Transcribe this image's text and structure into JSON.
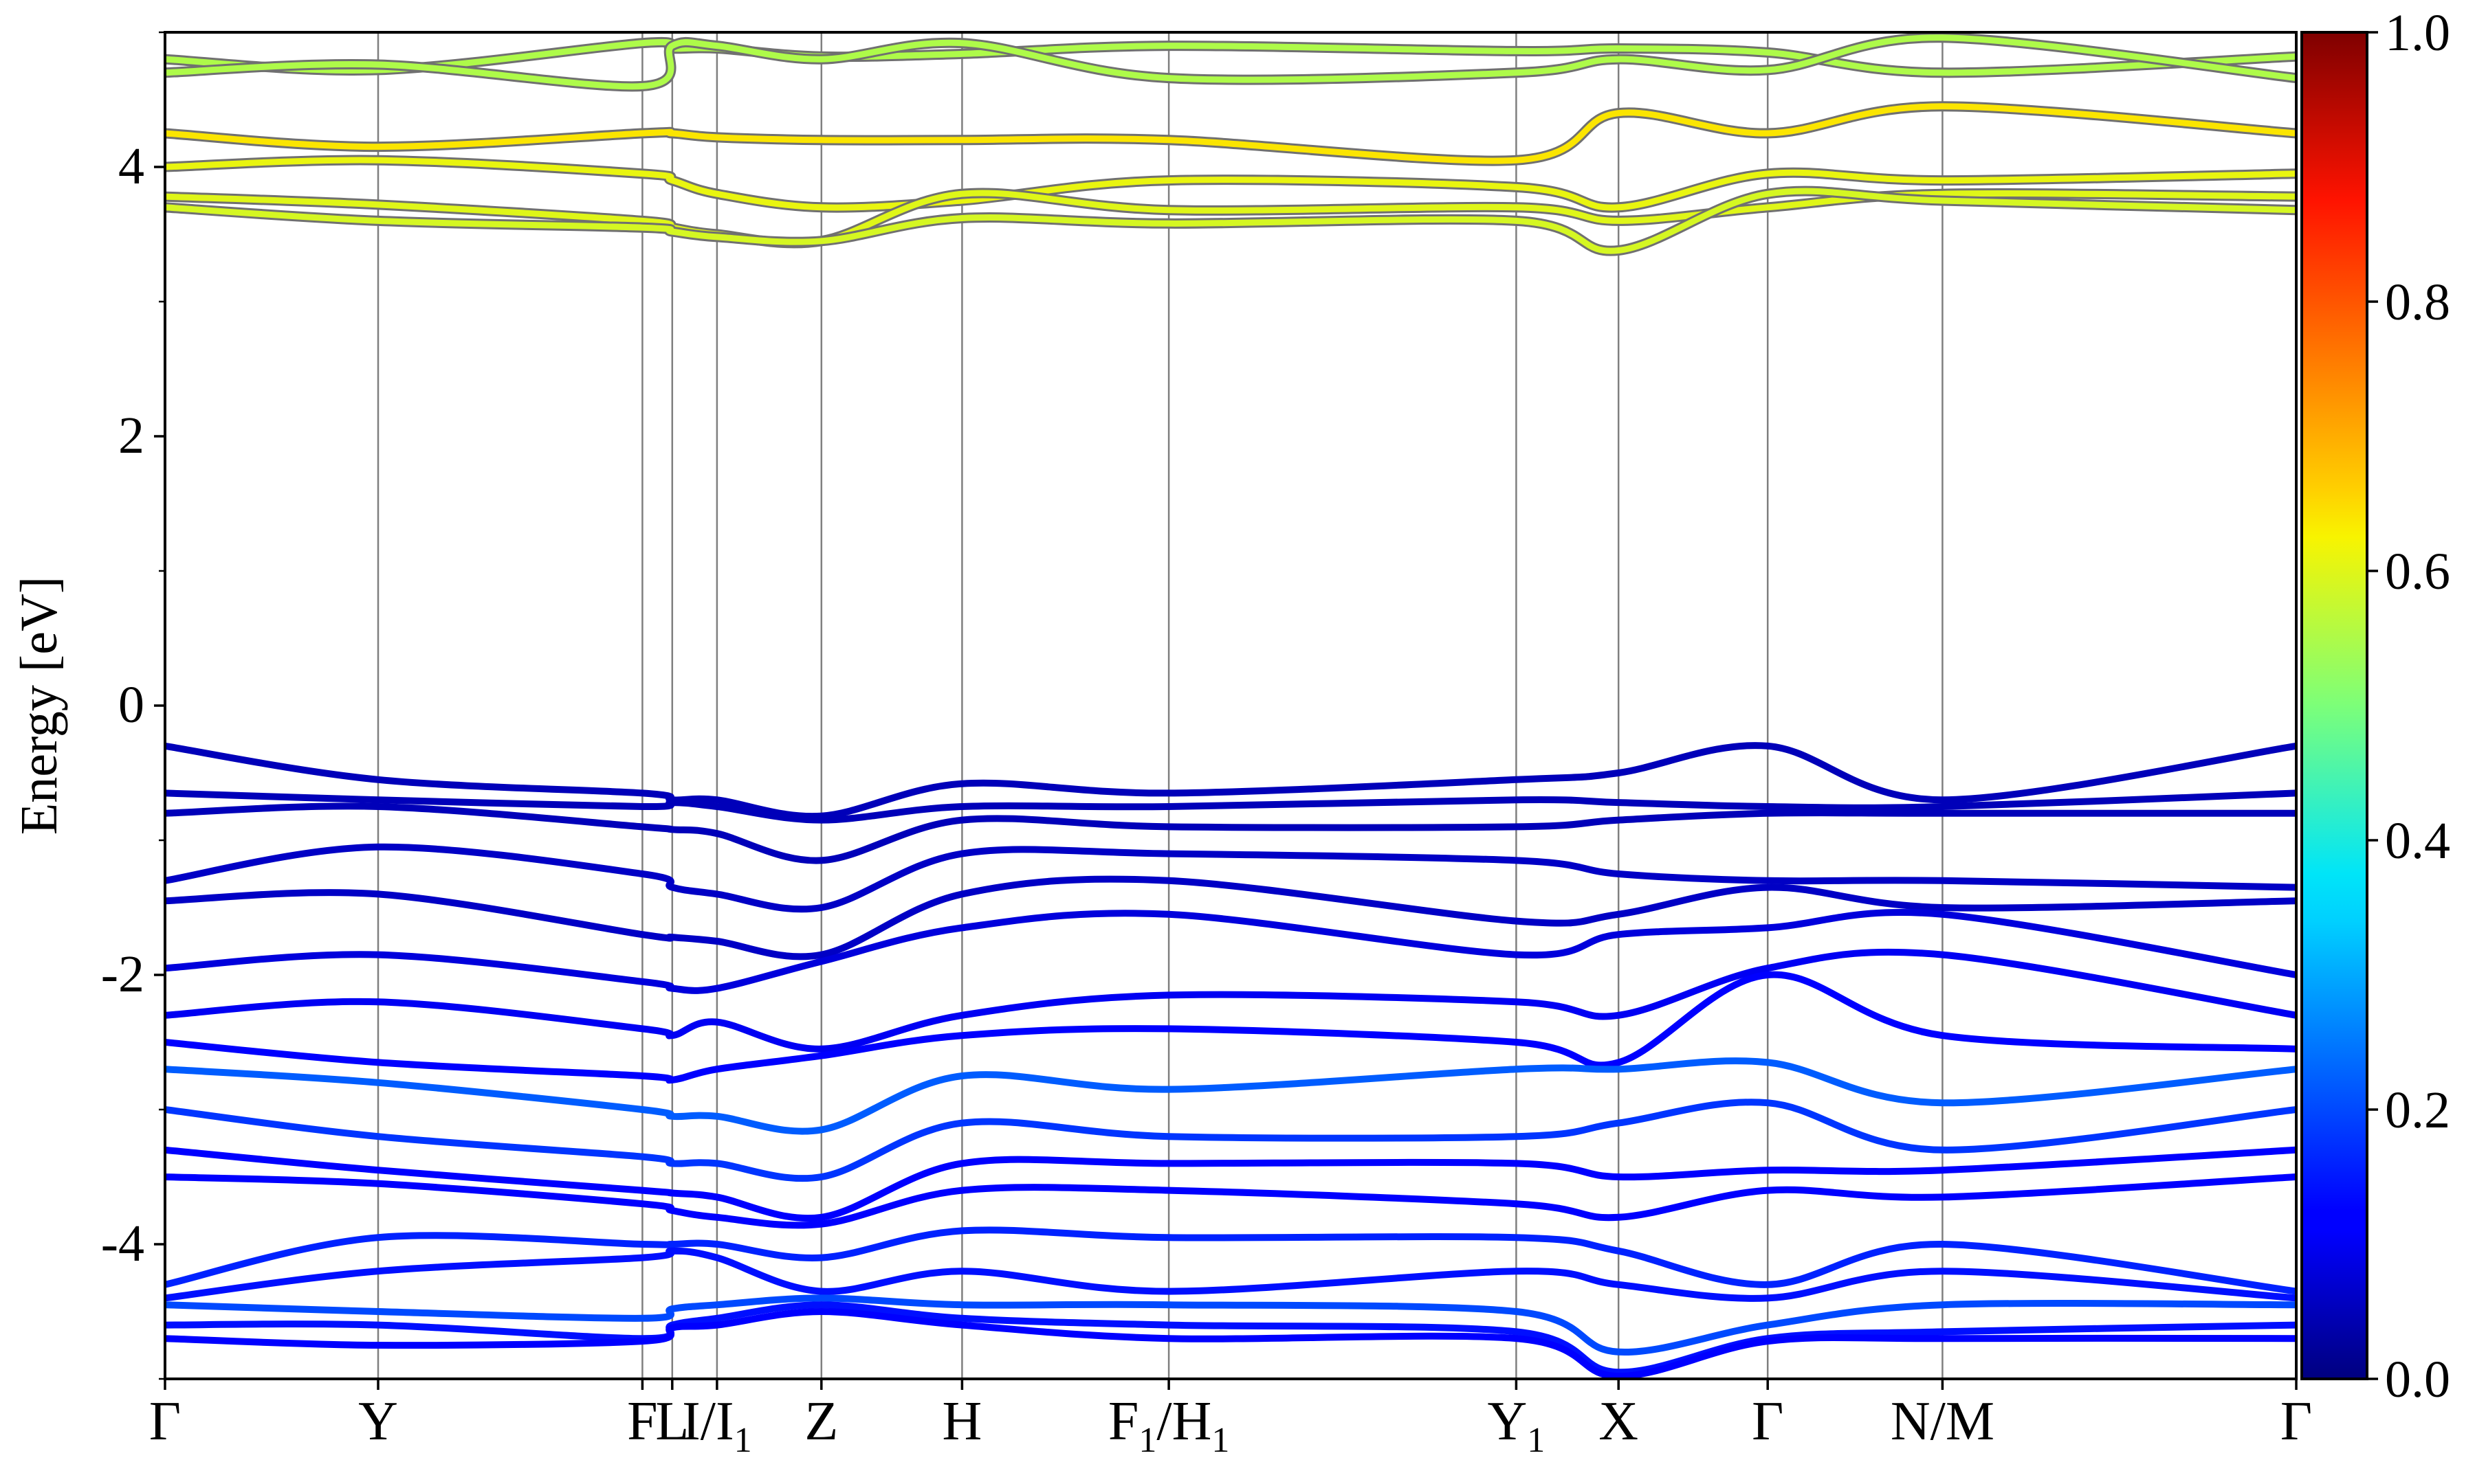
{
  "chart_data": {
    "type": "line",
    "xlabel": "",
    "ylabel": "Energy [eV]",
    "ylim": [
      -5,
      5
    ],
    "yticks": [
      -4,
      -2,
      0,
      2,
      4
    ],
    "ytick_labels": [
      "-4",
      "-2",
      "0",
      "2",
      "4"
    ],
    "xlim": [
      0,
      10
    ],
    "kpoints": [
      {
        "x": 0.0,
        "label": "Γ",
        "sub": ""
      },
      {
        "x": 1.0,
        "label": "Y",
        "sub": ""
      },
      {
        "x": 2.24,
        "label": "F",
        "sub": ""
      },
      {
        "x": 2.38,
        "label": "L",
        "sub": ""
      },
      {
        "x": 2.59,
        "label": "I/I",
        "sub": "1"
      },
      {
        "x": 3.08,
        "label": "Z",
        "sub": ""
      },
      {
        "x": 3.74,
        "label": "H",
        "sub": ""
      },
      {
        "x": 4.71,
        "label": "F",
        "sub": "1",
        "label2": "/H",
        "sub2": "1"
      },
      {
        "x": 6.34,
        "label": "Y",
        "sub": "1"
      },
      {
        "x": 6.82,
        "label": "X",
        "sub": ""
      },
      {
        "x": 7.52,
        "label": "Γ",
        "sub": ""
      },
      {
        "x": 8.34,
        "label": "N/M",
        "sub": ""
      },
      {
        "x": 10.0,
        "label": "Γ",
        "sub": ""
      }
    ],
    "colorbar": {
      "min": 0.0,
      "max": 1.0,
      "ticks": [
        "0.0",
        "0.2",
        "0.4",
        "0.6",
        "0.8",
        "1.0"
      ],
      "colormap": "jet"
    },
    "series": [
      {
        "weight": 0.55,
        "y": [
          4.8,
          4.72,
          4.92,
          4.88,
          4.88,
          4.82,
          4.84,
          4.9,
          4.86,
          4.88,
          4.85,
          4.7,
          4.82
        ]
      },
      {
        "weight": 0.55,
        "y": [
          4.7,
          4.76,
          4.6,
          4.9,
          4.9,
          4.8,
          4.92,
          4.66,
          4.7,
          4.8,
          4.72,
          4.96,
          4.66
        ]
      },
      {
        "weight": 0.64,
        "y": [
          4.25,
          4.15,
          4.25,
          4.25,
          4.22,
          4.2,
          4.2,
          4.2,
          4.05,
          4.4,
          4.25,
          4.45,
          4.25
        ]
      },
      {
        "weight": 0.61,
        "y": [
          4.0,
          4.05,
          3.95,
          3.9,
          3.8,
          3.7,
          3.75,
          3.9,
          3.85,
          3.7,
          3.95,
          3.9,
          3.95
        ]
      },
      {
        "weight": 0.6,
        "y": [
          3.78,
          3.72,
          3.6,
          3.55,
          3.5,
          3.45,
          3.8,
          3.68,
          3.7,
          3.6,
          3.7,
          3.8,
          3.78
        ]
      },
      {
        "weight": 0.59,
        "y": [
          3.7,
          3.6,
          3.55,
          3.52,
          3.48,
          3.45,
          3.62,
          3.58,
          3.6,
          3.38,
          3.8,
          3.75,
          3.68
        ]
      },
      {
        "weight": 0.05,
        "y": [
          -0.3,
          -0.55,
          -0.65,
          -0.7,
          -0.7,
          -0.82,
          -0.58,
          -0.65,
          -0.55,
          -0.5,
          -0.3,
          -0.7,
          -0.3
        ]
      },
      {
        "weight": 0.05,
        "y": [
          -0.65,
          -0.7,
          -0.75,
          -0.72,
          -0.75,
          -0.85,
          -0.75,
          -0.75,
          -0.7,
          -0.72,
          -0.75,
          -0.75,
          -0.65
        ]
      },
      {
        "weight": 0.05,
        "y": [
          -0.8,
          -0.75,
          -0.9,
          -0.92,
          -0.95,
          -1.15,
          -0.85,
          -0.9,
          -0.9,
          -0.85,
          -0.8,
          -0.8,
          -0.8
        ]
      },
      {
        "weight": 0.06,
        "y": [
          -1.3,
          -1.05,
          -1.25,
          -1.35,
          -1.4,
          -1.5,
          -1.1,
          -1.1,
          -1.15,
          -1.25,
          -1.3,
          -1.3,
          -1.35
        ]
      },
      {
        "weight": 0.06,
        "y": [
          -1.45,
          -1.4,
          -1.7,
          -1.72,
          -1.75,
          -1.85,
          -1.4,
          -1.3,
          -1.6,
          -1.55,
          -1.35,
          -1.5,
          -1.45
        ]
      },
      {
        "weight": 0.08,
        "y": [
          -1.95,
          -1.85,
          -2.05,
          -2.1,
          -2.1,
          -1.9,
          -1.65,
          -1.55,
          -1.85,
          -1.7,
          -1.65,
          -1.55,
          -2.0
        ]
      },
      {
        "weight": 0.1,
        "y": [
          -2.3,
          -2.2,
          -2.4,
          -2.45,
          -2.35,
          -2.55,
          -2.3,
          -2.15,
          -2.2,
          -2.3,
          -1.95,
          -1.85,
          -2.3
        ]
      },
      {
        "weight": 0.12,
        "y": [
          -2.5,
          -2.65,
          -2.75,
          -2.78,
          -2.7,
          -2.6,
          -2.45,
          -2.4,
          -2.5,
          -2.65,
          -2.0,
          -2.45,
          -2.55
        ]
      },
      {
        "weight": 0.22,
        "y": [
          -2.7,
          -2.8,
          -3.0,
          -3.05,
          -3.05,
          -3.15,
          -2.75,
          -2.85,
          -2.7,
          -2.7,
          -2.65,
          -2.95,
          -2.7
        ]
      },
      {
        "weight": 0.18,
        "y": [
          -3.0,
          -3.2,
          -3.35,
          -3.4,
          -3.4,
          -3.5,
          -3.1,
          -3.2,
          -3.2,
          -3.1,
          -2.95,
          -3.3,
          -3.0
        ]
      },
      {
        "weight": 0.12,
        "y": [
          -3.3,
          -3.45,
          -3.6,
          -3.62,
          -3.65,
          -3.8,
          -3.4,
          -3.4,
          -3.4,
          -3.5,
          -3.45,
          -3.45,
          -3.3
        ]
      },
      {
        "weight": 0.12,
        "y": [
          -3.5,
          -3.55,
          -3.7,
          -3.75,
          -3.8,
          -3.85,
          -3.6,
          -3.6,
          -3.7,
          -3.8,
          -3.6,
          -3.65,
          -3.5
        ]
      },
      {
        "weight": 0.16,
        "y": [
          -4.3,
          -3.95,
          -4.0,
          -4.0,
          -4.0,
          -4.1,
          -3.9,
          -3.95,
          -3.95,
          -4.05,
          -4.3,
          -4.0,
          -4.35
        ]
      },
      {
        "weight": 0.14,
        "y": [
          -4.4,
          -4.2,
          -4.1,
          -4.05,
          -4.1,
          -4.35,
          -4.2,
          -4.35,
          -4.2,
          -4.3,
          -4.4,
          -4.2,
          -4.4
        ]
      },
      {
        "weight": 0.2,
        "y": [
          -4.45,
          -4.5,
          -4.55,
          -4.48,
          -4.45,
          -4.4,
          -4.45,
          -4.45,
          -4.5,
          -4.8,
          -4.6,
          -4.45,
          -4.45
        ]
      },
      {
        "weight": 0.14,
        "y": [
          -4.6,
          -4.6,
          -4.7,
          -4.6,
          -4.55,
          -4.45,
          -4.55,
          -4.6,
          -4.65,
          -4.95,
          -4.7,
          -4.65,
          -4.6
        ]
      },
      {
        "weight": 0.12,
        "y": [
          -4.7,
          -4.75,
          -4.72,
          -4.62,
          -4.6,
          -4.5,
          -4.6,
          -4.7,
          -4.7,
          -4.98,
          -4.72,
          -4.7,
          -4.7
        ]
      }
    ]
  }
}
